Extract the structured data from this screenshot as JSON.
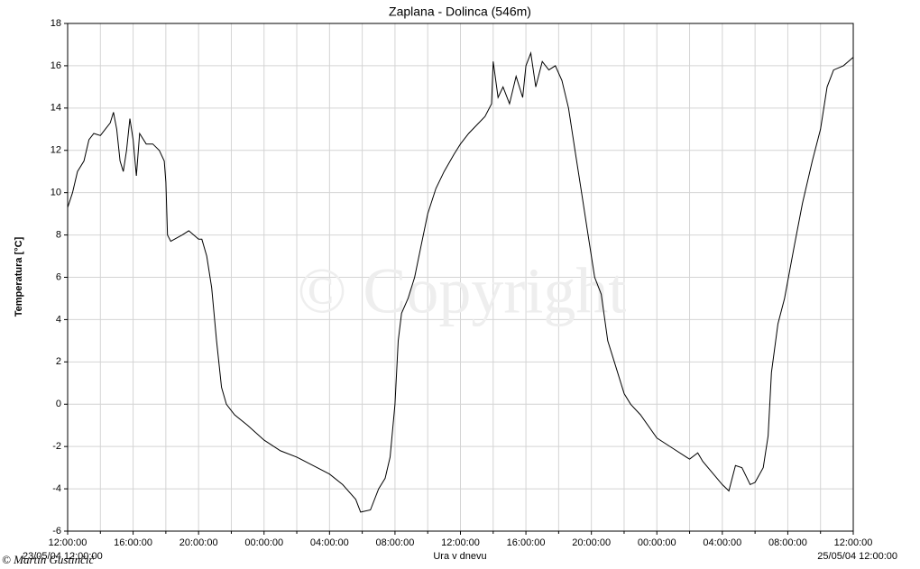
{
  "chart_data": {
    "type": "line",
    "title": "Zaplana - Dolinca (546m)",
    "x_label": "Ura v dnevu",
    "y_label": "Temperatura [°C]",
    "watermark": "© Copyright",
    "author": "© Martin Gustinčič",
    "start_label": "23/05/04 12:00:00",
    "end_label": "25/05/04 12:00:00",
    "xlim": [
      0,
      48
    ],
    "ylim": [
      -6,
      18
    ],
    "xticks": [
      {
        "value": 0,
        "label": "12:00:00"
      },
      {
        "value": 4,
        "label": "16:00:00"
      },
      {
        "value": 8,
        "label": "20:00:00"
      },
      {
        "value": 12,
        "label": "00:00:00"
      },
      {
        "value": 16,
        "label": "04:00:00"
      },
      {
        "value": 20,
        "label": "08:00:00"
      },
      {
        "value": 24,
        "label": "12:00:00"
      },
      {
        "value": 28,
        "label": "16:00:00"
      },
      {
        "value": 32,
        "label": "20:00:00"
      },
      {
        "value": 36,
        "label": "00:00:00"
      },
      {
        "value": 40,
        "label": "04:00:00"
      },
      {
        "value": 44,
        "label": "08:00:00"
      },
      {
        "value": 48,
        "label": "12:00:00"
      }
    ],
    "x_minor_ticks": [
      2,
      6,
      10,
      14,
      18,
      22,
      26,
      30,
      34,
      38,
      42,
      46
    ],
    "yticks": [
      -6,
      -4,
      -2,
      0,
      2,
      4,
      6,
      8,
      10,
      12,
      14,
      16,
      18
    ],
    "grid": true,
    "series": [
      {
        "name": "Temperatura",
        "color": "#000000",
        "x": [
          0,
          0.3,
          0.6,
          1.0,
          1.3,
          1.6,
          2.0,
          2.3,
          2.6,
          2.8,
          3.0,
          3.2,
          3.4,
          3.6,
          3.8,
          4.0,
          4.2,
          4.4,
          4.8,
          5.2,
          5.6,
          5.9,
          6.0,
          6.1,
          6.3,
          7.0,
          7.4,
          8.0,
          8.2,
          8.5,
          8.8,
          9.1,
          9.4,
          9.7,
          10.2,
          11,
          12,
          13,
          14,
          15,
          16,
          16.8,
          17.6,
          17.9,
          18.5,
          19.0,
          19.4,
          19.7,
          20.0,
          20.2,
          20.4,
          20.8,
          21.2,
          21.6,
          22.0,
          22.5,
          23.0,
          23.6,
          24.0,
          24.5,
          25.0,
          25.5,
          25.9,
          26.0,
          26.3,
          26.6,
          27.0,
          27.4,
          27.8,
          28.0,
          28.3,
          28.6,
          29.0,
          29.4,
          29.8,
          30.2,
          30.6,
          31.0,
          31.4,
          31.8,
          32.2,
          32.6,
          33.0,
          33.4,
          34.0,
          34.4,
          35.0,
          36.0,
          37.0,
          38.0,
          38.5,
          38.8,
          40.0,
          40.4,
          40.8,
          41.2,
          41.7,
          42.0,
          42.5,
          42.8,
          43.0,
          43.4,
          43.8,
          44.4,
          44.9,
          45.5,
          46.0,
          46.4,
          46.8,
          47.4,
          48.0
        ],
        "values": [
          9.3,
          10.0,
          11.0,
          11.5,
          12.5,
          12.8,
          12.7,
          13.0,
          13.3,
          13.8,
          13.0,
          11.5,
          11.0,
          12.0,
          13.5,
          12.5,
          10.8,
          12.8,
          12.3,
          12.3,
          12.0,
          11.5,
          10.5,
          8.0,
          7.7,
          8.0,
          8.2,
          7.8,
          7.8,
          7.0,
          5.5,
          3.0,
          0.8,
          0.0,
          -0.5,
          -1.0,
          -1.7,
          -2.2,
          -2.5,
          -2.9,
          -3.3,
          -3.8,
          -4.5,
          -5.1,
          -5.0,
          -4.0,
          -3.5,
          -2.5,
          0.0,
          3.0,
          4.3,
          5.0,
          6.0,
          7.5,
          9.0,
          10.2,
          11.0,
          11.8,
          12.3,
          12.8,
          13.2,
          13.6,
          14.2,
          16.2,
          14.5,
          15.0,
          14.2,
          15.5,
          14.5,
          16.0,
          16.6,
          15.0,
          16.2,
          15.8,
          16.0,
          15.3,
          14.0,
          12.0,
          10.0,
          8.0,
          6.0,
          5.2,
          3.0,
          2.0,
          0.5,
          0.0,
          -0.5,
          -1.6,
          -2.1,
          -2.6,
          -2.3,
          -2.7,
          -3.8,
          -4.1,
          -2.9,
          -3.0,
          -3.8,
          -3.7,
          -3.0,
          -1.5,
          1.5,
          3.8,
          5.0,
          7.5,
          9.5,
          11.5,
          13.0,
          15.0,
          15.8,
          16.0,
          16.4
        ]
      }
    ]
  }
}
